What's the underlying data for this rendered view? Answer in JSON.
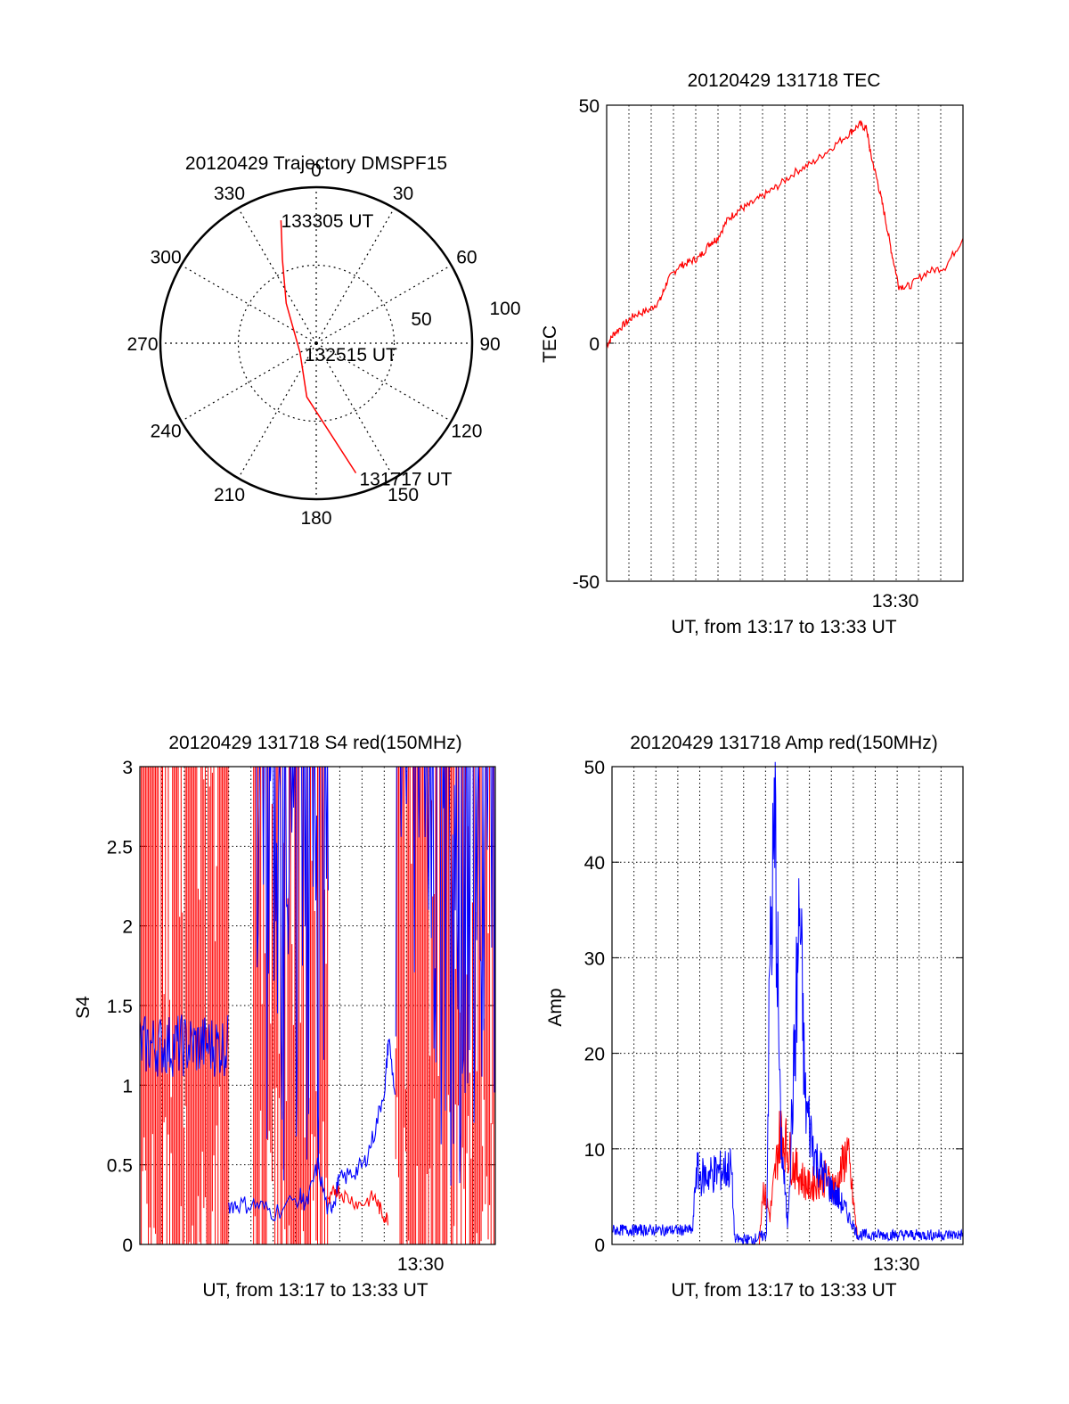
{
  "colors": {
    "axis": "#000000",
    "grid": "#000000",
    "red": "#ff0000",
    "blue": "#0000ff"
  },
  "chart_data": [
    {
      "id": "trajectory",
      "type": "polar",
      "title": "20120429 Trajectory DMSPF15",
      "angle_labels": [
        "0",
        "30",
        "60",
        "90",
        "120",
        "150",
        "180",
        "210",
        "240",
        "270",
        "300",
        "330"
      ],
      "radial_labels": [
        "50",
        "100"
      ],
      "radial_max": 100,
      "series": [
        {
          "color": "#ff0000",
          "points": [
            {
              "az": 344,
              "r": 82
            },
            {
              "az": 338,
              "r": 58
            },
            {
              "az": 323,
              "r": 32
            },
            {
              "az": 240,
              "r": 12
            },
            {
              "az": 190,
              "r": 35
            },
            {
              "az": 163,
              "r": 87
            }
          ]
        }
      ],
      "annotations": [
        {
          "text": "133305 UT",
          "az": 344,
          "r": 82
        },
        {
          "text": "132515 UT",
          "az": 110,
          "r": 3
        },
        {
          "text": "131717 UT",
          "az": 163,
          "r": 87
        }
      ]
    },
    {
      "id": "tec",
      "type": "line",
      "title": "20120429 131718 TEC",
      "xlabel": "UT, from 13:17 to 13:33 UT",
      "ylabel": "TEC",
      "xlim": [
        0,
        1.0
      ],
      "ylim": [
        -50,
        50
      ],
      "yticks": [
        "-50",
        "0",
        "50"
      ],
      "xtick_label": "13:30",
      "xtick_pos": 0.81,
      "vgrid_count": 16,
      "series": [
        {
          "color": "#ff0000",
          "x": [
            0.0,
            0.02,
            0.05,
            0.08,
            0.12,
            0.15,
            0.17,
            0.2,
            0.23,
            0.26,
            0.29,
            0.31,
            0.34,
            0.37,
            0.4,
            0.44,
            0.48,
            0.53,
            0.58,
            0.63,
            0.68,
            0.71,
            0.73,
            0.74,
            0.76,
            0.78,
            0.8,
            0.82,
            0.85,
            0.9,
            0.95,
            1.0
          ],
          "y": [
            -0.5,
            2,
            4,
            6,
            7,
            9,
            13,
            16,
            17,
            18,
            21,
            22,
            26,
            28,
            29,
            31,
            33,
            36,
            38,
            41,
            44,
            46,
            45,
            40,
            34,
            27,
            19,
            12,
            12,
            15,
            16,
            22
          ]
        }
      ]
    },
    {
      "id": "s4",
      "type": "line",
      "title": "20120429 131718 S4 red(150MHz)",
      "xlabel": "UT, from 13:17 to 13:33 UT",
      "ylabel": "S4",
      "xlim": [
        0,
        1.0
      ],
      "ylim": [
        0,
        3
      ],
      "yticks": [
        "0",
        "0.5",
        "1",
        "1.5",
        "2",
        "2.5",
        "3"
      ],
      "xtick_label": "13:30",
      "xtick_pos": 0.79,
      "vgrid_count": 16,
      "series": [
        {
          "name": "",
          "color": "#ff0000",
          "segments": [
            [
              0.0,
              0.25
            ],
            [
              0.32,
              0.53
            ],
            [
              0.72,
              1.0
            ]
          ],
          "band": [
            0.0,
            3.0
          ]
        },
        {
          "name": "",
          "color": "#0000ff",
          "segments": [
            [
              0.0,
              0.25
            ],
            [
              0.32,
              0.53
            ],
            [
              0.72,
              1.0
            ]
          ],
          "band": [
            1.05,
            1.45
          ]
        }
      ],
      "blue_trace": {
        "x": [
          0.25,
          0.28,
          0.33,
          0.38,
          0.45,
          0.47,
          0.5,
          0.53,
          0.55,
          0.56,
          0.6,
          0.63,
          0.66,
          0.69,
          0.7,
          0.72
        ],
        "y": [
          0.25,
          0.25,
          0.25,
          0.2,
          0.3,
          0.25,
          0.5,
          0.2,
          0.3,
          0.4,
          0.45,
          0.5,
          0.7,
          1.0,
          1.3,
          0.9
        ]
      },
      "red_trace": {
        "x": [
          0.53,
          0.55,
          0.58,
          0.62,
          0.66,
          0.68,
          0.7
        ],
        "y": [
          0.25,
          0.35,
          0.3,
          0.25,
          0.3,
          0.2,
          0.15
        ]
      }
    },
    {
      "id": "amp",
      "type": "line",
      "title": "20120429 131718 Amp red(150MHz)",
      "xlabel": "UT, from 13:17 to 13:33 UT",
      "ylabel": "Amp",
      "xlim": [
        0,
        1.0
      ],
      "ylim": [
        0,
        50
      ],
      "yticks": [
        "0",
        "10",
        "20",
        "30",
        "40",
        "50"
      ],
      "xtick_label": "13:30",
      "xtick_pos": 0.81,
      "vgrid_count": 16,
      "series": [
        {
          "color": "#0000ff",
          "x": [
            0.0,
            0.23,
            0.24,
            0.25,
            0.34,
            0.35,
            0.4,
            0.44,
            0.45,
            0.465,
            0.48,
            0.5,
            0.52,
            0.535,
            0.55,
            0.58,
            0.62,
            0.66,
            0.7,
            1.0
          ],
          "y": [
            1.5,
            1.5,
            8,
            7,
            8,
            0.5,
            0.5,
            1,
            30,
            43,
            12,
            2,
            20,
            35,
            15,
            9,
            6,
            4,
            1,
            1
          ]
        },
        {
          "color": "#ff0000",
          "x": [
            0.42,
            0.43,
            0.45,
            0.48,
            0.52,
            0.56,
            0.6,
            0.64,
            0.67,
            0.7
          ],
          "y": [
            0.5,
            6,
            3,
            12,
            8,
            6,
            7,
            6,
            10,
            0.5
          ]
        }
      ]
    }
  ]
}
